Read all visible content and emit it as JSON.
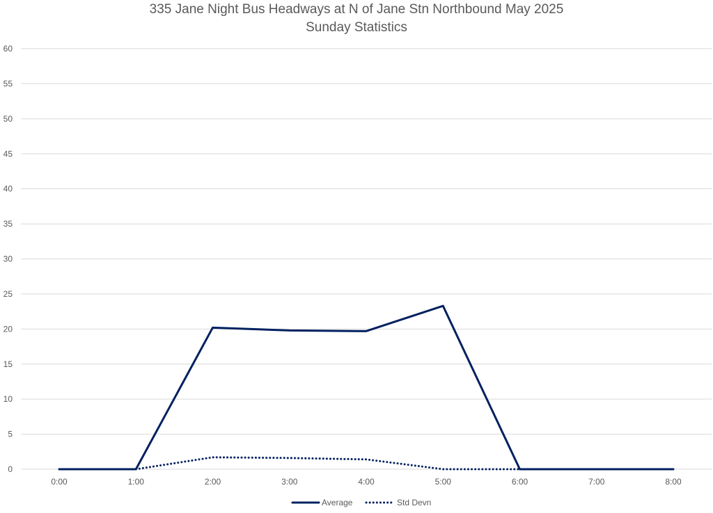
{
  "chart_data": {
    "type": "line",
    "title": "335 Jane Night Bus Headways at N of Jane Stn Northbound May 2025",
    "subtitle": "Sunday Statistics",
    "xlabel": "",
    "ylabel": "",
    "x": [
      "0:00",
      "1:00",
      "2:00",
      "3:00",
      "4:00",
      "5:00",
      "6:00",
      "7:00",
      "8:00"
    ],
    "ylim": [
      0,
      60
    ],
    "yticks": [
      0,
      5,
      10,
      15,
      20,
      25,
      30,
      35,
      40,
      45,
      50,
      55,
      60
    ],
    "grid": true,
    "legend_position": "bottom",
    "series": [
      {
        "name": "Average",
        "style": "solid",
        "color": "#002060",
        "values": [
          0,
          0,
          20.2,
          19.8,
          19.7,
          23.3,
          0,
          0,
          0
        ]
      },
      {
        "name": "Std Devn",
        "style": "dotted",
        "color": "#002060",
        "values": [
          null,
          0,
          1.7,
          1.6,
          1.4,
          0,
          0,
          null,
          null
        ]
      }
    ]
  }
}
